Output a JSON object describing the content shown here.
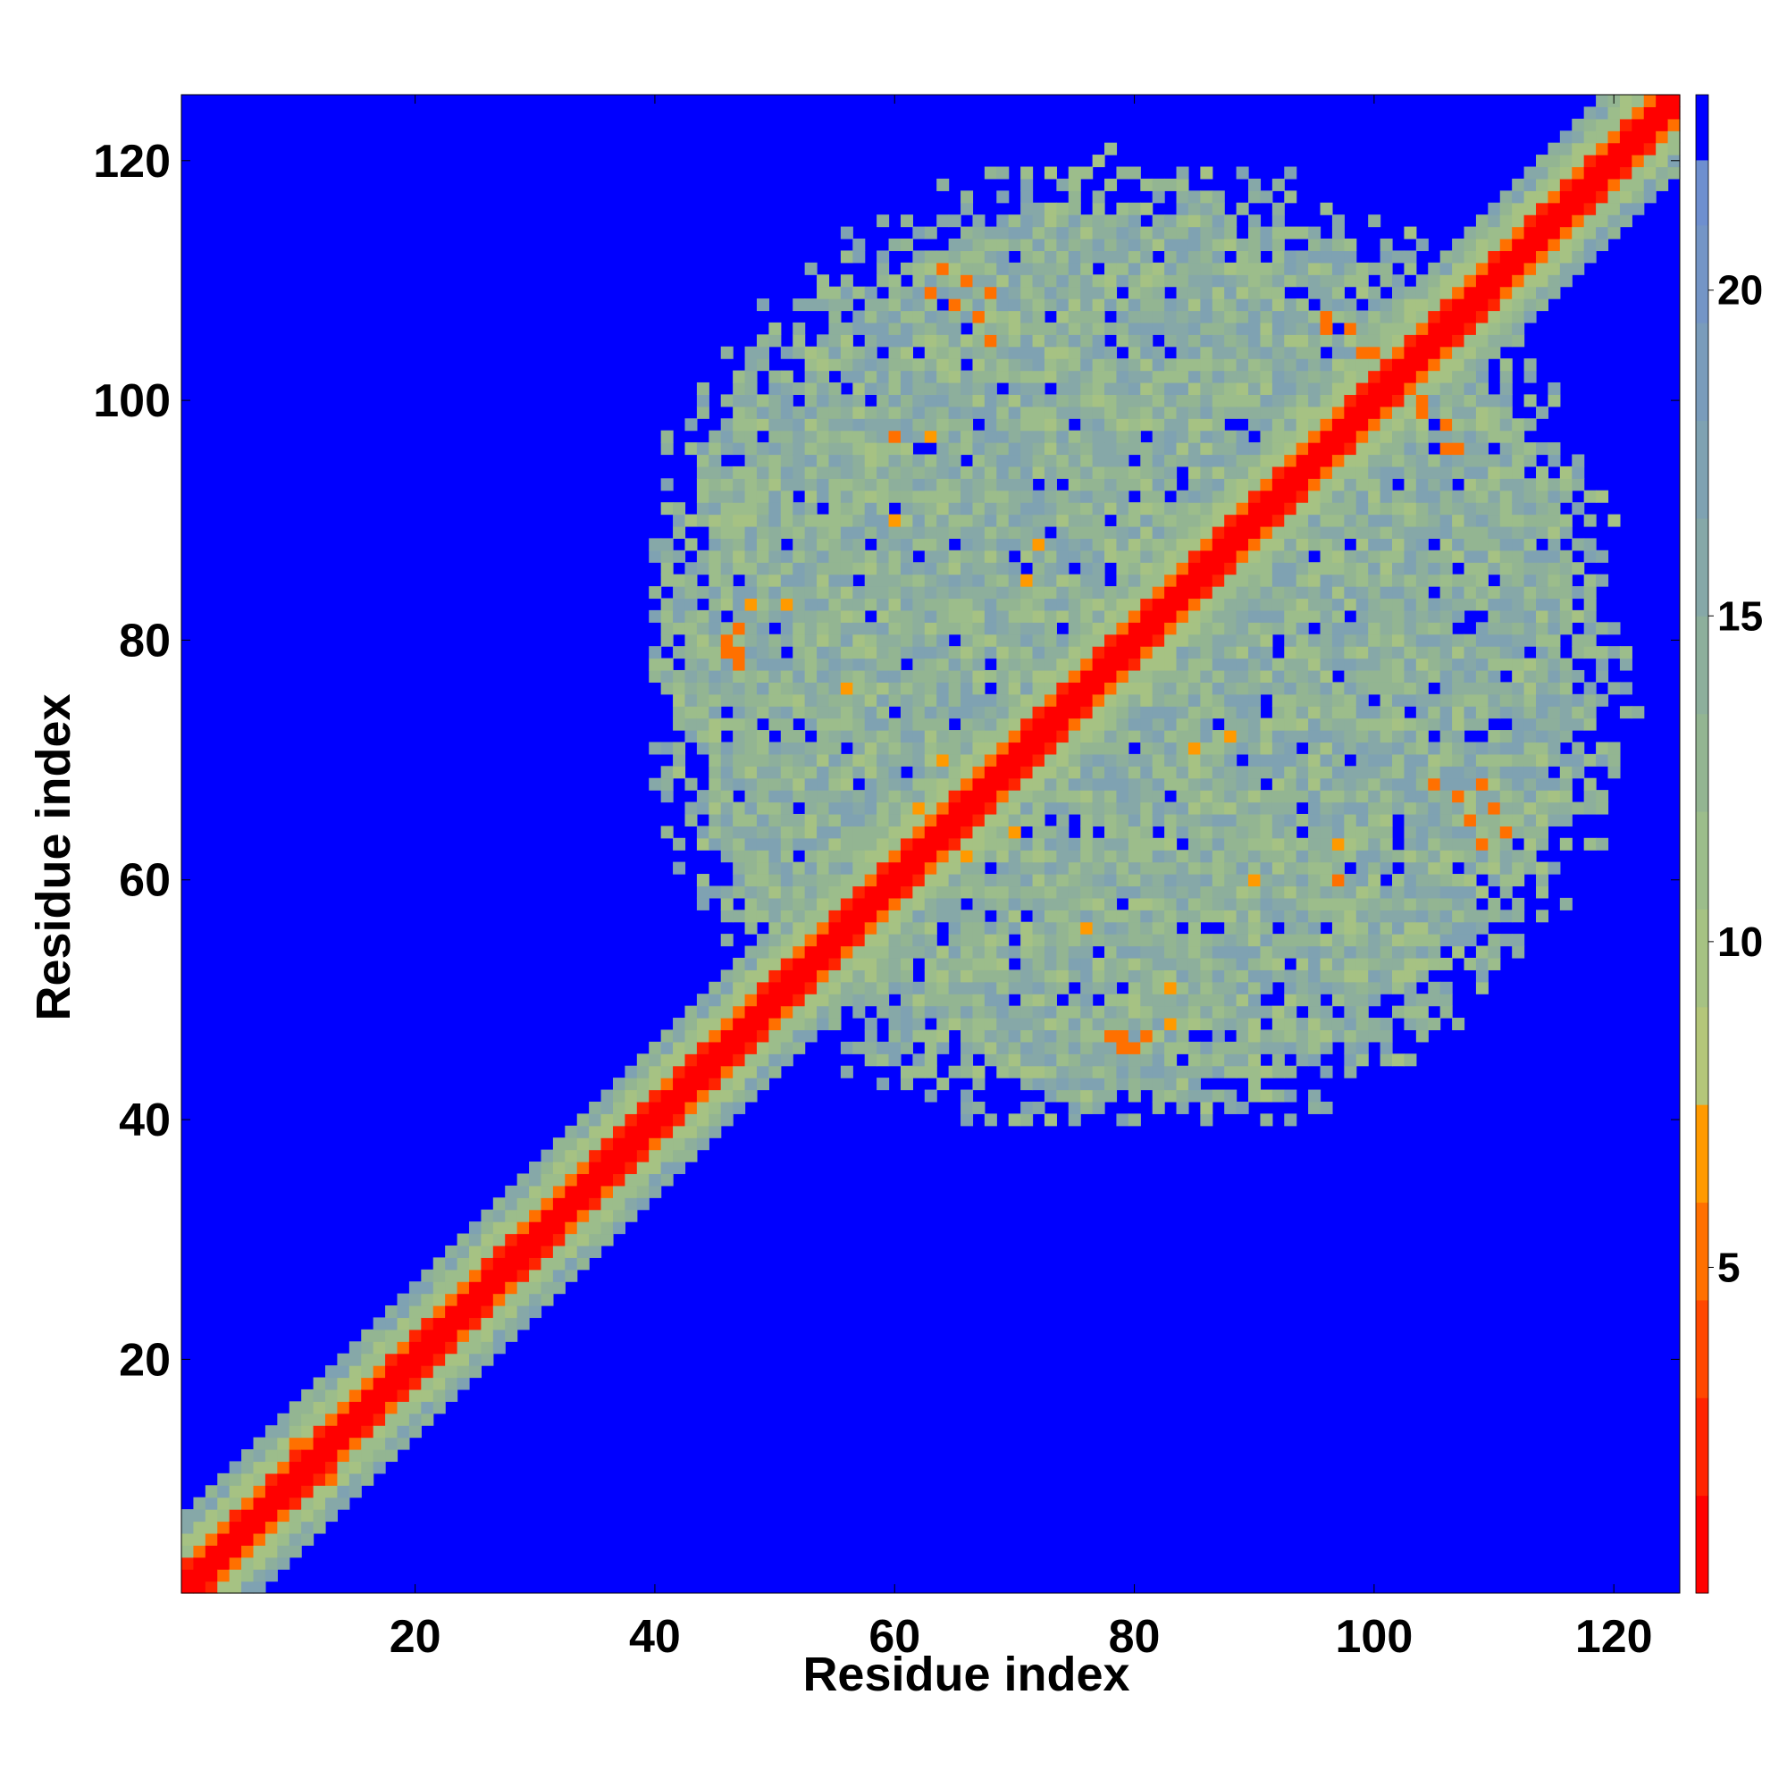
{
  "chart_data": {
    "type": "heatmap",
    "title": "",
    "xlabel": "Residue index",
    "ylabel": "Residue index",
    "xlim": [
      1,
      125
    ],
    "ylim": [
      1,
      125
    ],
    "x_ticks": [
      "20",
      "40",
      "60",
      "80",
      "100",
      "120"
    ],
    "y_ticks": [
      "20",
      "40",
      "60",
      "80",
      "100",
      "120"
    ],
    "colorbar": {
      "ticks": [
        "5",
        "10",
        "15",
        "20"
      ],
      "range": [
        0,
        23
      ],
      "levels": [
        {
          "upper": 1.5,
          "color": "#ff0000"
        },
        {
          "upper": 3.0,
          "color": "#ff2400"
        },
        {
          "upper": 4.5,
          "color": "#ff4800"
        },
        {
          "upper": 6.0,
          "color": "#ff7000"
        },
        {
          "upper": 7.5,
          "color": "#ff9a00"
        },
        {
          "upper": 9.0,
          "color": "#b4c67a"
        },
        {
          "upper": 10.5,
          "color": "#a6c283"
        },
        {
          "upper": 12.0,
          "color": "#9cbd8b"
        },
        {
          "upper": 13.5,
          "color": "#93b592"
        },
        {
          "upper": 15.0,
          "color": "#8daf9c"
        },
        {
          "upper": 16.5,
          "color": "#86a8a8"
        },
        {
          "upper": 18.0,
          "color": "#7fa2b2"
        },
        {
          "upper": 19.5,
          "color": "#7a9cbb"
        },
        {
          "upper": 21.0,
          "color": "#7495c6"
        },
        {
          "upper": 22.0,
          "color": "#6e8fcf"
        },
        {
          "upper": 23.0,
          "color": "#0000ff"
        }
      ]
    },
    "background_color": "#0000ff",
    "diagonal_band": {
      "core_value": 1.0,
      "near_value": 5.0,
      "shoulder_value": 9.0
    },
    "contact_region": {
      "x_range": [
        40,
        119
      ],
      "y_range": [
        40,
        118
      ],
      "base_value": 14.0
    },
    "close_contacts": [
      {
        "x": 10,
        "y": 13,
        "value": 5.5
      },
      {
        "x": 11,
        "y": 9,
        "value": 5.5
      },
      {
        "x": 13,
        "y": 10,
        "value": 5.5
      },
      {
        "x": 47,
        "y": 78,
        "value": 6.0
      },
      {
        "x": 47,
        "y": 79,
        "value": 6.0
      },
      {
        "x": 48,
        "y": 83,
        "value": 6.5
      },
      {
        "x": 51,
        "y": 83,
        "value": 6.5
      },
      {
        "x": 60,
        "y": 97,
        "value": 6.0
      },
      {
        "x": 60,
        "y": 90,
        "value": 6.5
      },
      {
        "x": 63,
        "y": 109,
        "value": 5.5
      },
      {
        "x": 65,
        "y": 108,
        "value": 5.5
      },
      {
        "x": 67,
        "y": 107,
        "value": 5.5
      },
      {
        "x": 68,
        "y": 105,
        "value": 6.0
      },
      {
        "x": 66,
        "y": 62,
        "value": 6.5
      },
      {
        "x": 73,
        "y": 72,
        "value": 6.0
      },
      {
        "x": 75,
        "y": 73,
        "value": 6.0
      },
      {
        "x": 79,
        "y": 46,
        "value": 5.5
      },
      {
        "x": 80,
        "y": 46,
        "value": 5.5
      },
      {
        "x": 81,
        "y": 47,
        "value": 5.5
      },
      {
        "x": 85,
        "y": 71,
        "value": 6.5
      },
      {
        "x": 96,
        "y": 107,
        "value": 5.5
      },
      {
        "x": 98,
        "y": 106,
        "value": 5.5
      },
      {
        "x": 100,
        "y": 104,
        "value": 6.0
      },
      {
        "x": 104,
        "y": 99,
        "value": 6.0
      },
      {
        "x": 106,
        "y": 96,
        "value": 6.0
      },
      {
        "x": 109,
        "y": 68,
        "value": 6.0
      },
      {
        "x": 110,
        "y": 66,
        "value": 6.0
      },
      {
        "x": 111,
        "y": 64,
        "value": 6.0
      },
      {
        "x": 97,
        "y": 63,
        "value": 6.5
      },
      {
        "x": 76,
        "y": 56,
        "value": 6.5
      },
      {
        "x": 70,
        "y": 64,
        "value": 6.5
      },
      {
        "x": 88,
        "y": 72,
        "value": 6.5
      }
    ]
  }
}
